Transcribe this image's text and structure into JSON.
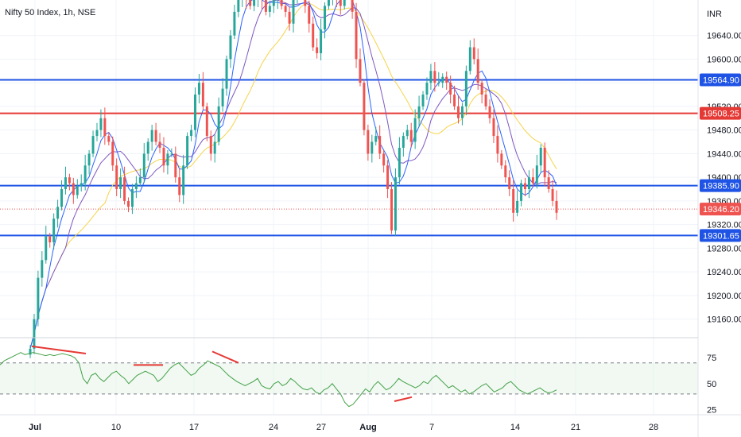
{
  "header": {
    "title": "Nifty 50 Index, 1h, NSE",
    "currency": "INR"
  },
  "colors": {
    "up": "#26a69a",
    "down": "#ef5350",
    "blue_line": "#1e53e5",
    "red_line": "#e53935",
    "ma_yellow": "#f5d44a",
    "ma_purple": "#7e57c2",
    "ma_blue": "#2962ff",
    "rsi": "#43a047",
    "grid": "#f0f3fa",
    "axis": "#e0e3eb"
  },
  "chart_data": [
    {
      "type": "candlestick",
      "title": "Nifty 50 Index, 1h, NSE",
      "ylim": [
        19130,
        19700
      ],
      "y_ticks": [
        "19160.00",
        "19200.00",
        "19240.00",
        "19280.00",
        "19320.00",
        "19360.00",
        "19400.00",
        "19440.00",
        "19480.00",
        "19520.00",
        "19560.00",
        "19600.00",
        "19640.00"
      ],
      "x_ticks": [
        {
          "label": "Jul",
          "bold": true
        },
        {
          "label": "10",
          "bold": false
        },
        {
          "label": "17",
          "bold": false
        },
        {
          "label": "24",
          "bold": false
        },
        {
          "label": "27",
          "bold": false
        },
        {
          "label": "Aug",
          "bold": true
        },
        {
          "label": "7",
          "bold": false
        },
        {
          "label": "14",
          "bold": false
        },
        {
          "label": "21",
          "bold": false
        },
        {
          "label": "28",
          "bold": false
        }
      ],
      "horizontal_levels": [
        {
          "value": 19564.9,
          "label": "19564.90",
          "color": "#1e53e5"
        },
        {
          "value": 19508.25,
          "label": "19508.25",
          "color": "#e53935"
        },
        {
          "value": 19385.9,
          "label": "19385.90",
          "color": "#1e53e5"
        },
        {
          "value": 19301.65,
          "label": "19301.65",
          "color": "#1e53e5"
        }
      ],
      "last_price": {
        "value": 19346.2,
        "label": "19346.20",
        "color": "#ef5350"
      },
      "series_close": [
        19110,
        19160,
        19230,
        19260,
        19300,
        19290,
        19330,
        19350,
        19380,
        19400,
        19390,
        19370,
        19385,
        19390,
        19420,
        19440,
        19470,
        19480,
        19500,
        19470,
        19460,
        19420,
        19380,
        19400,
        19360,
        19350,
        19380,
        19390,
        19400,
        19440,
        19460,
        19480,
        19460,
        19450,
        19420,
        19440,
        19440,
        19400,
        19370,
        19420,
        19470,
        19480,
        19540,
        19560,
        19520,
        19470,
        19440,
        19460,
        19520,
        19550,
        19600,
        19640,
        19680,
        19700,
        19720,
        19700,
        19690,
        19700,
        19710,
        19700,
        19680,
        19690,
        19700,
        19710,
        19690,
        19680,
        19660,
        19700,
        19720,
        19710,
        19690,
        19660,
        19620,
        19610,
        19650,
        19690,
        19700,
        19720,
        19700,
        19690,
        19710,
        19720,
        19680,
        19600,
        19560,
        19480,
        19440,
        19460,
        19470,
        19440,
        19420,
        19380,
        19310,
        19400,
        19450,
        19470,
        19480,
        19460,
        19500,
        19520,
        19540,
        19560,
        19580,
        19560,
        19560,
        19570,
        19560,
        19540,
        19520,
        19500,
        19520,
        19580,
        19620,
        19600,
        19560,
        19540,
        19520,
        19500,
        19470,
        19440,
        19420,
        19400,
        19380,
        19340,
        19360,
        19390,
        19380,
        19400,
        19390,
        19420,
        19450,
        19400,
        19380,
        19360,
        19340
      ],
      "rsi": {
        "y_ticks": [
          "75",
          "50",
          "25"
        ],
        "ylim": [
          20,
          92
        ],
        "bands": [
          70,
          40
        ],
        "values": [
          68,
          72,
          74,
          76,
          78,
          80,
          78,
          79,
          80,
          79,
          78,
          77,
          78,
          77,
          78,
          79,
          78,
          77,
          75,
          70,
          55,
          50,
          58,
          60,
          55,
          52,
          56,
          60,
          62,
          58,
          55,
          50,
          54,
          58,
          60,
          62,
          60,
          58,
          52,
          55,
          60,
          65,
          68,
          70,
          66,
          62,
          58,
          60,
          65,
          68,
          72,
          70,
          68,
          66,
          62,
          58,
          55,
          52,
          50,
          48,
          50,
          52,
          55,
          48,
          46,
          45,
          50,
          52,
          48,
          50,
          55,
          52,
          48,
          45,
          44,
          46,
          42,
          40,
          44,
          46,
          50,
          45,
          40,
          32,
          28,
          30,
          35,
          40,
          45,
          42,
          48,
          52,
          48,
          44,
          46,
          50,
          55,
          52,
          50,
          48,
          46,
          48,
          52,
          50,
          55,
          58,
          54,
          50,
          46,
          48,
          45,
          42,
          44,
          40,
          42,
          45,
          48,
          50,
          46,
          42,
          44,
          46,
          50,
          52,
          48,
          44,
          42,
          40,
          42,
          44,
          46,
          43,
          41,
          42,
          44
        ]
      }
    }
  ]
}
